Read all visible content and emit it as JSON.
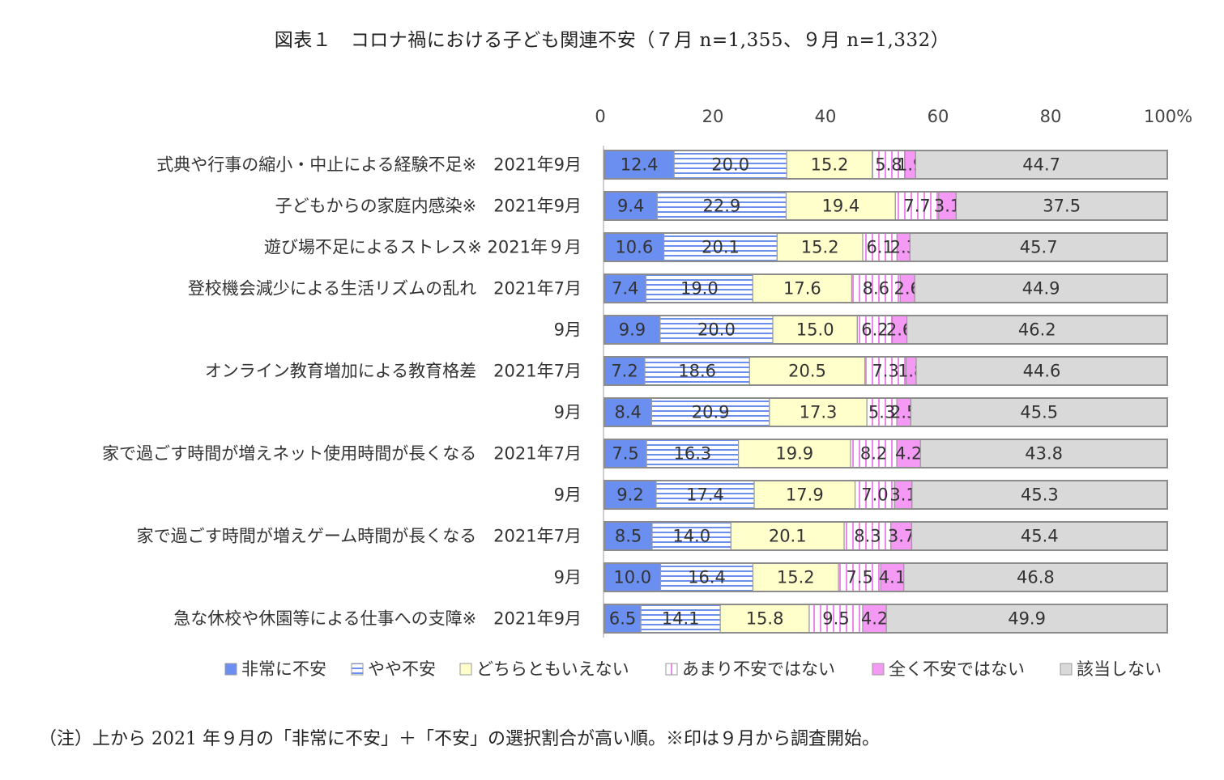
{
  "figure_title": "図表１　コロナ禍における子ども関連不安（７月 n=1,355、９月 n=1,332）",
  "footnote": "（注）上から 2021 年９月の「非常に不安」＋「不安」の選択割合が高い順。※印は９月から調査開始。",
  "chart_data": {
    "type": "bar",
    "orientation": "horizontal",
    "stacked": "percent",
    "xlim": [
      0,
      100
    ],
    "x_ticks": [
      "0",
      "20",
      "40",
      "60",
      "80",
      "100%"
    ],
    "legend_position": "bottom",
    "categories": [
      "式典や行事の縮小・中止による経験不足※　2021年9月",
      "子どもからの家庭内感染※　2021年9月",
      "遊び場不足によるストレス※ 2021年９月",
      "登校機会減少による生活リズムの乱れ　2021年7月",
      "9月",
      "オンライン教育増加による教育格差　2021年7月",
      "9月",
      "家で過ごす時間が増えネット使用時間が長くなる　2021年7月",
      "9月",
      "家で過ごす時間が増えゲーム時間が長くなる　2021年7月",
      "9月",
      "急な休校や休園等による仕事への支障※　2021年9月"
    ],
    "series": [
      {
        "name": "非常に不安",
        "color": "#6b8ff0",
        "pattern": "solid",
        "values": [
          "12.4",
          "9.4",
          "10.6",
          "7.4",
          "9.9",
          "7.2",
          "8.4",
          "7.5",
          "9.2",
          "8.5",
          "10.0",
          "6.5"
        ]
      },
      {
        "name": "やや不安",
        "color": "#6b8ff0",
        "pattern": "hstripe",
        "values": [
          "20.0",
          "22.9",
          "20.1",
          "19.0",
          "20.0",
          "18.6",
          "20.9",
          "16.3",
          "17.4",
          "14.0",
          "16.4",
          "14.1"
        ]
      },
      {
        "name": "どちらともいえない",
        "color": "#ffffcc",
        "pattern": "solid",
        "values": [
          "15.2",
          "19.4",
          "15.2",
          "17.6",
          "15.0",
          "20.5",
          "17.3",
          "19.9",
          "17.9",
          "20.1",
          "15.2",
          "15.8"
        ]
      },
      {
        "name": "あまり不安ではない",
        "color": "#ee88ee",
        "pattern": "vstripe",
        "values": [
          "5.8",
          "7.7",
          "6.1",
          "8.6",
          "6.2",
          "7.3",
          "5.3",
          "8.2",
          "7.0",
          "8.3",
          "7.5",
          "9.5"
        ]
      },
      {
        "name": "全く不安ではない",
        "color": "#f49af4",
        "pattern": "solid",
        "values": [
          "1.9",
          "3.1",
          "2.3",
          "2.6",
          "2.6",
          "1.8",
          "2.5",
          "4.2",
          "3.1",
          "3.7",
          "4.1",
          "4.2"
        ]
      },
      {
        "name": "該当しない",
        "color": "#d9d9d9",
        "pattern": "solid",
        "values": [
          "44.7",
          "37.5",
          "45.7",
          "44.9",
          "46.2",
          "44.6",
          "45.5",
          "43.8",
          "45.3",
          "45.4",
          "46.8",
          "49.9"
        ]
      }
    ]
  }
}
